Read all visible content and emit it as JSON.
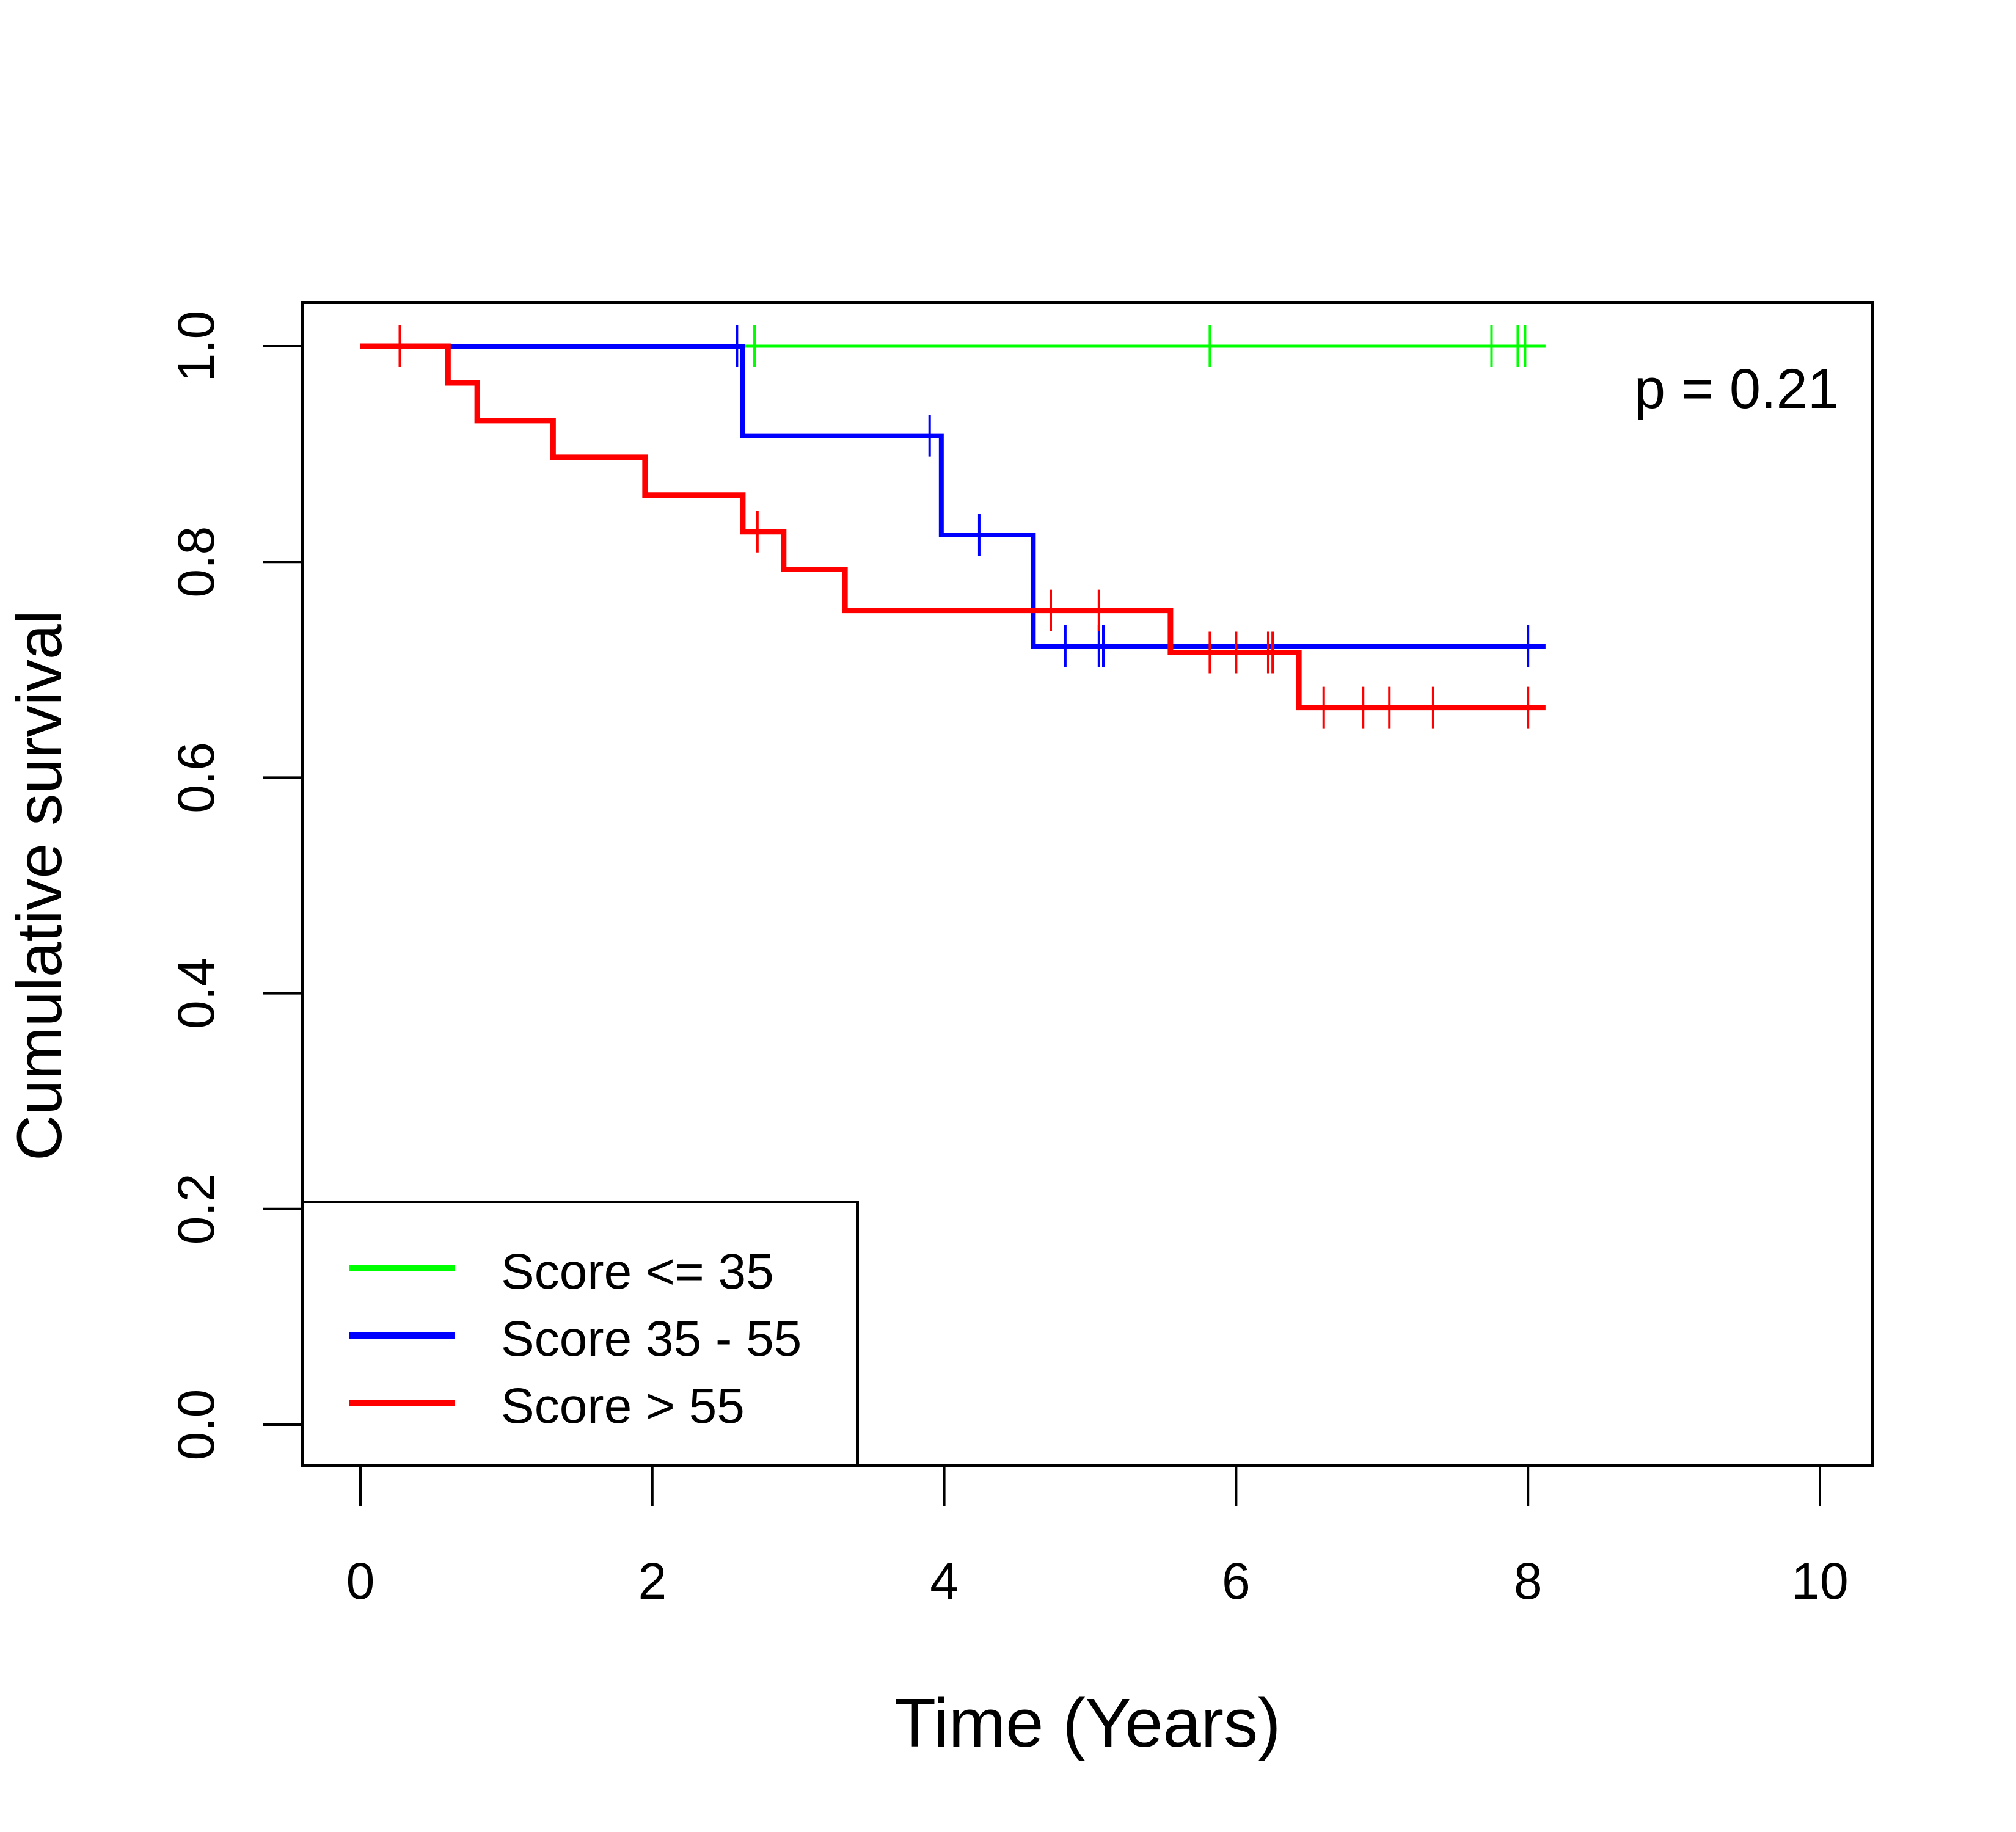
{
  "chart_data": {
    "type": "line",
    "subtype": "kaplan-meier step survival curve",
    "title": "",
    "xlabel": "Time (Years)",
    "ylabel": "Cumulative survival",
    "xlim": [
      0,
      10
    ],
    "ylim": [
      0.0,
      1.0
    ],
    "x_ticks": [
      "0",
      "2",
      "4",
      "6",
      "8",
      "10"
    ],
    "y_ticks": [
      "0.0",
      "0.2",
      "0.4",
      "0.6",
      "0.8",
      "1.0"
    ],
    "grid": false,
    "legend_position": "bottom-left",
    "annotation": "p = 0.21",
    "series": [
      {
        "name": "Score <= 35",
        "color": "#00ff00",
        "steps": [
          [
            0,
            1.0
          ],
          [
            8.12,
            1.0
          ]
        ],
        "censored": [
          [
            2.7,
            1.0
          ],
          [
            5.82,
            1.0
          ],
          [
            7.75,
            1.0
          ],
          [
            7.93,
            1.0
          ],
          [
            7.98,
            1.0
          ]
        ]
      },
      {
        "name": "Score 35 - 55",
        "color": "#0000ff",
        "steps": [
          [
            0,
            1.0
          ],
          [
            2.62,
            0.917
          ],
          [
            3.98,
            0.825
          ],
          [
            4.61,
            0.722
          ],
          [
            8.12,
            0.722
          ]
        ],
        "censored": [
          [
            2.58,
            1.0
          ],
          [
            3.9,
            0.917
          ],
          [
            4.24,
            0.825
          ],
          [
            4.83,
            0.722
          ],
          [
            5.06,
            0.722
          ],
          [
            5.09,
            0.722
          ],
          [
            8.0,
            0.722
          ]
        ]
      },
      {
        "name": "Score > 55",
        "color": "#ff0000",
        "steps": [
          [
            0,
            1.0
          ],
          [
            0.6,
            0.966
          ],
          [
            0.8,
            0.931
          ],
          [
            1.32,
            0.897
          ],
          [
            1.95,
            0.862
          ],
          [
            2.62,
            0.828
          ],
          [
            2.9,
            0.793
          ],
          [
            3.32,
            0.755
          ],
          [
            5.55,
            0.716
          ],
          [
            6.43,
            0.665
          ],
          [
            8.12,
            0.665
          ]
        ],
        "censored": [
          [
            0.27,
            1.0
          ],
          [
            2.72,
            0.828
          ],
          [
            4.73,
            0.755
          ],
          [
            5.06,
            0.755
          ],
          [
            5.82,
            0.716
          ],
          [
            6.0,
            0.716
          ],
          [
            6.22,
            0.716
          ],
          [
            6.25,
            0.716
          ],
          [
            6.6,
            0.665
          ],
          [
            6.87,
            0.665
          ],
          [
            7.05,
            0.665
          ],
          [
            7.35,
            0.665
          ],
          [
            8.0,
            0.665
          ]
        ]
      }
    ]
  }
}
